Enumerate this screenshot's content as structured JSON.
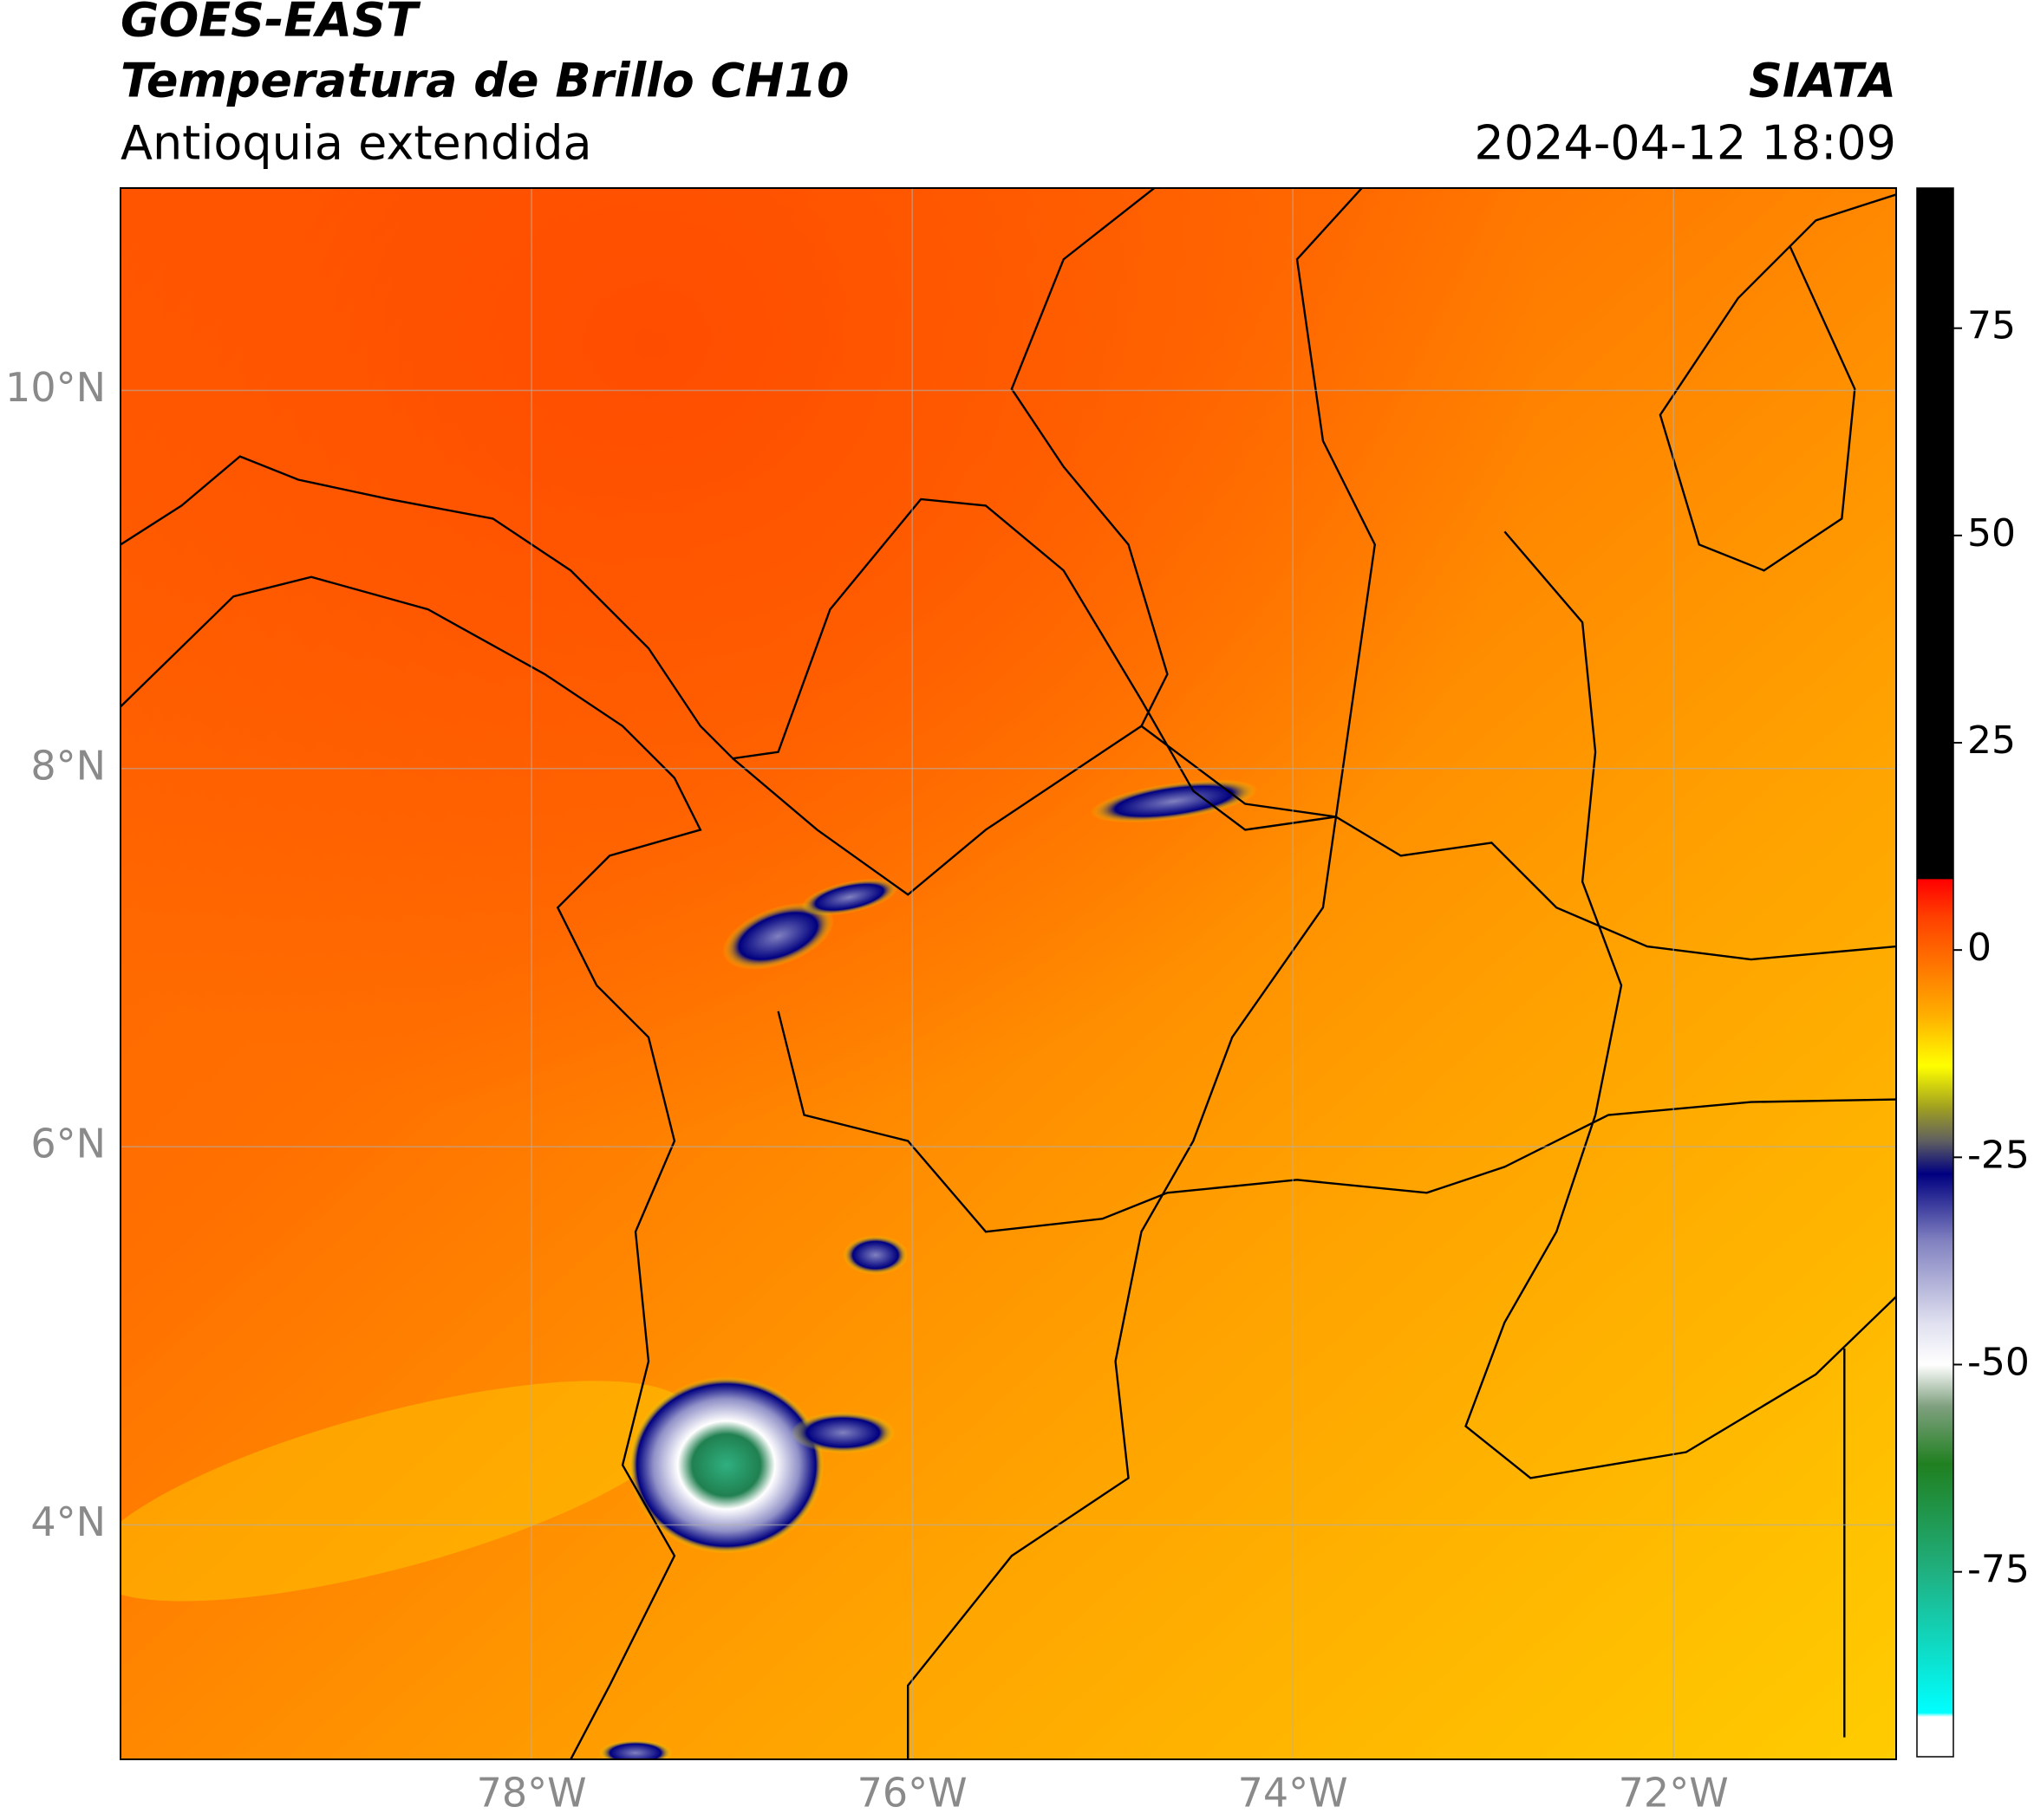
{
  "header": {
    "title": "GOES-EAST",
    "subtitle": "Temperatura de Brillo CH10",
    "region": "Antioquia extendida",
    "source": "SIATA",
    "timestamp": "2024-04-12 18:09"
  },
  "map": {
    "xlim": [
      -80.16,
      -70.83
    ],
    "ylim": [
      2.76,
      11.07
    ],
    "xticks": [
      {
        "value": -78,
        "label": "78°W"
      },
      {
        "value": -76,
        "label": "76°W"
      },
      {
        "value": -74,
        "label": "74°W"
      },
      {
        "value": -72,
        "label": "72°W"
      }
    ],
    "yticks": [
      {
        "value": 4,
        "label": "4°N"
      },
      {
        "value": 6,
        "label": "6°N"
      },
      {
        "value": 8,
        "label": "8°N"
      },
      {
        "value": 10,
        "label": "10°N"
      }
    ],
    "grid": true
  },
  "colorbar": {
    "lim": [
      -97.3,
      91.9
    ],
    "ticks": [
      -75,
      -50,
      -25,
      0,
      25,
      50,
      75
    ],
    "colormap": [
      {
        "value": 91.9,
        "color": "#000000"
      },
      {
        "value": 8.6,
        "color": "#000000"
      },
      {
        "value": 8.5,
        "color": "#ff0000"
      },
      {
        "value": 4,
        "color": "#ff4000"
      },
      {
        "value": -3,
        "color": "#ff8000"
      },
      {
        "value": -8,
        "color": "#ffb000"
      },
      {
        "value": -14,
        "color": "#ffff00"
      },
      {
        "value": -19,
        "color": "#a0a020"
      },
      {
        "value": -23,
        "color": "#606060"
      },
      {
        "value": -27,
        "color": "#000080"
      },
      {
        "value": -35,
        "color": "#8080c0"
      },
      {
        "value": -45,
        "color": "#e0e0f0"
      },
      {
        "value": -50,
        "color": "#ffffff"
      },
      {
        "value": -55,
        "color": "#80a080"
      },
      {
        "value": -62,
        "color": "#208020"
      },
      {
        "value": -75,
        "color": "#20b080"
      },
      {
        "value": -92,
        "color": "#00ffff"
      },
      {
        "value": -92.5,
        "color": "#ffffff"
      },
      {
        "value": -97.3,
        "color": "#ffffff"
      }
    ]
  }
}
